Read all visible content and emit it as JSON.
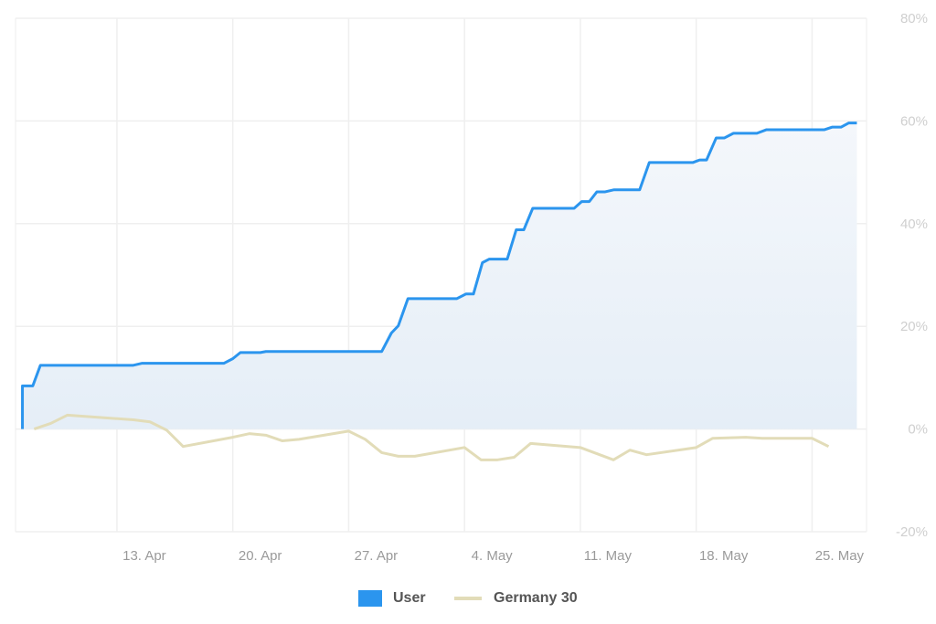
{
  "chart_data": {
    "type": "area",
    "title": "",
    "xlabel": "",
    "ylabel": "",
    "x_ticks": [
      {
        "date": "2020-04-13",
        "label": "13. Apr"
      },
      {
        "date": "2020-04-20",
        "label": "20. Apr"
      },
      {
        "date": "2020-04-27",
        "label": "27. Apr"
      },
      {
        "date": "2020-05-04",
        "label": "4. May"
      },
      {
        "date": "2020-05-11",
        "label": "11. May"
      },
      {
        "date": "2020-05-18",
        "label": "18. May"
      },
      {
        "date": "2020-05-25",
        "label": "25. May"
      }
    ],
    "y_ticks": [
      {
        "value": 80,
        "label": "80%"
      },
      {
        "value": 60,
        "label": "60%"
      },
      {
        "value": 40,
        "label": "40%"
      },
      {
        "value": 20,
        "label": "20%"
      },
      {
        "value": 0,
        "label": "0%"
      },
      {
        "value": -20,
        "label": "-20%"
      }
    ],
    "xlim": [
      "2020-04-06T21:00",
      "2020-05-28T07:00"
    ],
    "ylim": [
      -20,
      80
    ],
    "y_axis_side": "right",
    "grid": true,
    "legend_position": "bottom-center",
    "series": [
      {
        "name": "User",
        "type": "area",
        "color": "#2b95ee",
        "fill_top": "#f4f7fb",
        "fill_bottom": "#e5eef7",
        "points": [
          [
            "2020-04-07T07:00",
            0
          ],
          [
            "2020-04-07T07:00",
            8.4
          ],
          [
            "2020-04-07T22:00",
            8.4
          ],
          [
            "2020-04-08T09:00",
            12.4
          ],
          [
            "2020-04-13T23:00",
            12.4
          ],
          [
            "2020-04-14T12:00",
            12.8
          ],
          [
            "2020-04-19T11:00",
            12.8
          ],
          [
            "2020-04-20T00:00",
            13.7
          ],
          [
            "2020-04-20T11:00",
            14.9
          ],
          [
            "2020-04-21T16:00",
            14.9
          ],
          [
            "2020-04-22T00:00",
            15.1
          ],
          [
            "2020-04-29T00:00",
            15.1
          ],
          [
            "2020-04-29T14:00",
            18.7
          ],
          [
            "2020-04-30T00:00",
            20.1
          ],
          [
            "2020-04-30T14:00",
            25.4
          ],
          [
            "2020-05-03T13:00",
            25.4
          ],
          [
            "2020-05-04T02:00",
            26.3
          ],
          [
            "2020-05-04T13:00",
            26.3
          ],
          [
            "2020-05-05T02:00",
            32.4
          ],
          [
            "2020-05-05T12:00",
            33.1
          ],
          [
            "2020-05-06T14:00",
            33.1
          ],
          [
            "2020-05-07T03:00",
            38.8
          ],
          [
            "2020-05-07T14:00",
            38.8
          ],
          [
            "2020-05-08T03:00",
            43.0
          ],
          [
            "2020-05-10T15:00",
            43.0
          ],
          [
            "2020-05-11T02:00",
            44.3
          ],
          [
            "2020-05-11T13:00",
            44.3
          ],
          [
            "2020-05-12T00:00",
            46.2
          ],
          [
            "2020-05-12T12:00",
            46.2
          ],
          [
            "2020-05-13T01:00",
            46.6
          ],
          [
            "2020-05-14T14:00",
            46.6
          ],
          [
            "2020-05-15T04:00",
            51.9
          ],
          [
            "2020-05-17T19:00",
            51.9
          ],
          [
            "2020-05-18T05:00",
            52.4
          ],
          [
            "2020-05-18T15:00",
            52.4
          ],
          [
            "2020-05-19T05:00",
            56.7
          ],
          [
            "2020-05-19T17:00",
            56.7
          ],
          [
            "2020-05-20T06:00",
            57.6
          ],
          [
            "2020-05-21T16:00",
            57.6
          ],
          [
            "2020-05-22T06:00",
            58.3
          ],
          [
            "2020-05-25T18:00",
            58.3
          ],
          [
            "2020-05-26T05:00",
            58.8
          ],
          [
            "2020-05-26T18:00",
            58.8
          ],
          [
            "2020-05-27T05:00",
            59.6
          ],
          [
            "2020-05-27T17:00",
            59.6
          ]
        ]
      },
      {
        "name": "Germany 30",
        "type": "line",
        "color": "#e2dcb8",
        "points": [
          [
            "2020-04-08T00:00",
            0
          ],
          [
            "2020-04-09T00:00",
            1.1
          ],
          [
            "2020-04-10T00:00",
            2.7
          ],
          [
            "2020-04-14T00:00",
            1.8
          ],
          [
            "2020-04-15T00:00",
            1.4
          ],
          [
            "2020-04-16T00:00",
            -0.2
          ],
          [
            "2020-04-17T00:00",
            -3.4
          ],
          [
            "2020-04-20T00:00",
            -1.6
          ],
          [
            "2020-04-21T00:00",
            -0.9
          ],
          [
            "2020-04-22T00:00",
            -1.2
          ],
          [
            "2020-04-23T00:00",
            -2.3
          ],
          [
            "2020-04-24T00:00",
            -2.0
          ],
          [
            "2020-04-27T00:00",
            -0.4
          ],
          [
            "2020-04-28T00:00",
            -2.0
          ],
          [
            "2020-04-29T00:00",
            -4.6
          ],
          [
            "2020-04-30T00:00",
            -5.3
          ],
          [
            "2020-05-01T00:00",
            -5.3
          ],
          [
            "2020-05-04T00:00",
            -3.6
          ],
          [
            "2020-05-05T00:00",
            -6.0
          ],
          [
            "2020-05-06T00:00",
            -6.0
          ],
          [
            "2020-05-07T00:00",
            -5.5
          ],
          [
            "2020-05-08T00:00",
            -2.8
          ],
          [
            "2020-05-11T00:00",
            -3.6
          ],
          [
            "2020-05-13T00:00",
            -6.0
          ],
          [
            "2020-05-14T00:00",
            -4.1
          ],
          [
            "2020-05-15T00:00",
            -5.0
          ],
          [
            "2020-05-18T00:00",
            -3.6
          ],
          [
            "2020-05-19T00:00",
            -1.8
          ],
          [
            "2020-05-21T00:00",
            -1.6
          ],
          [
            "2020-05-22T00:00",
            -1.8
          ],
          [
            "2020-05-25T00:00",
            -1.8
          ],
          [
            "2020-05-26T00:00",
            -3.4
          ]
        ]
      }
    ]
  },
  "legend": {
    "items": [
      {
        "label": "User",
        "color": "#2b95ee"
      },
      {
        "label": "Germany 30",
        "color": "#e2dcb8"
      }
    ]
  }
}
